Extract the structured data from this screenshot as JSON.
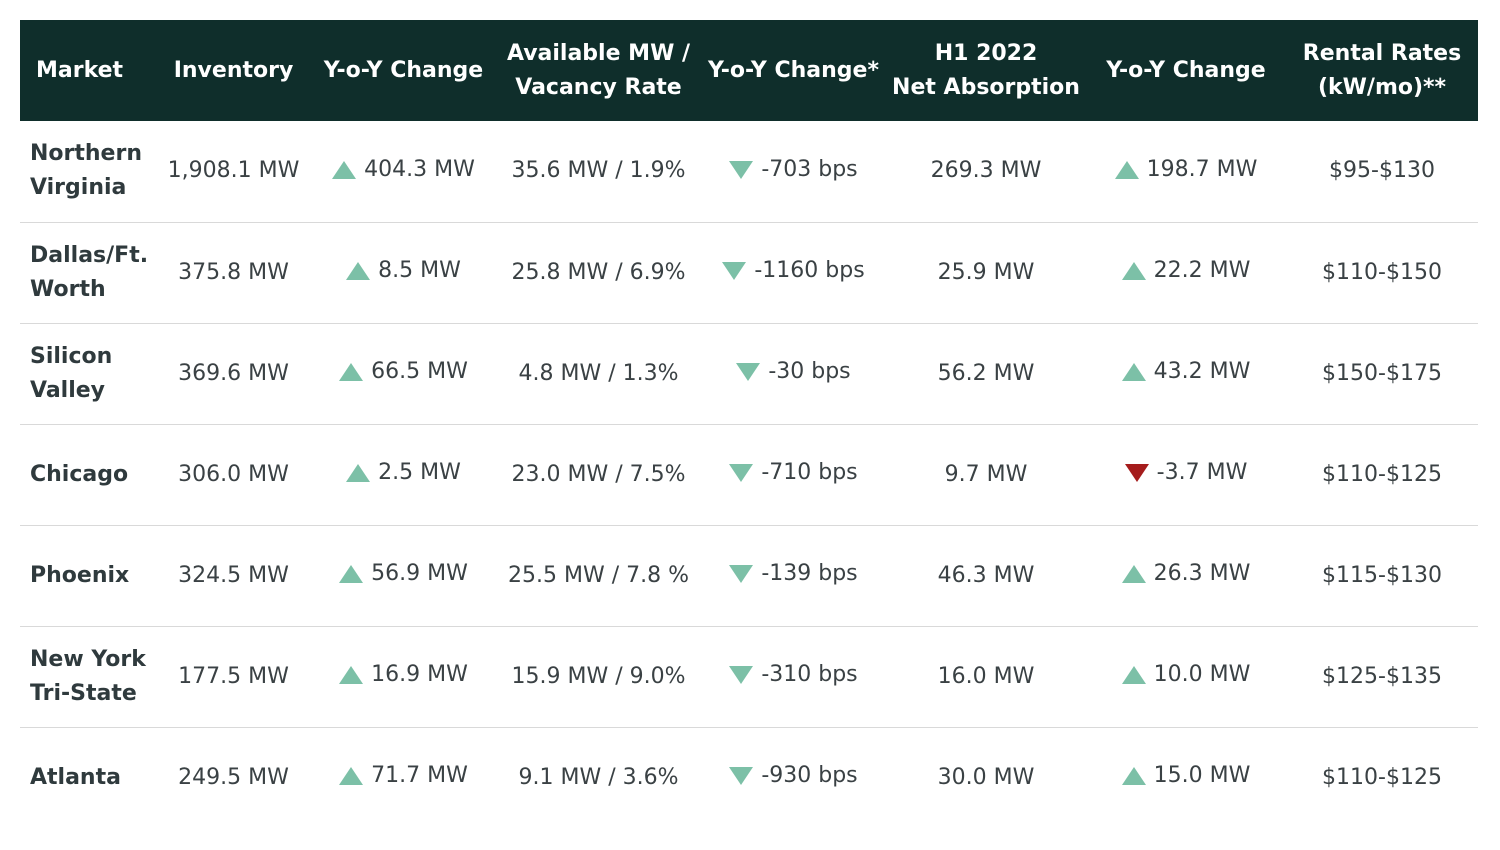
{
  "colors": {
    "header_bg": "#0f2e2b",
    "arrow_teal": "#7cc0a7",
    "arrow_red": "#a51c1c",
    "row_divider": "#d9d9d9"
  },
  "headers": [
    "Market",
    "Inventory",
    "Y-o-Y Change",
    "Available MW /\nVacancy Rate",
    "Y-o-Y Change*",
    "H1 2022\nNet Absorption",
    "Y-o-Y Change",
    "Rental Rates\n(kW/mo)**"
  ],
  "rows": [
    {
      "market": "Northern\nVirginia",
      "inventory": "1,908.1 MW",
      "inv_chg": "404.3 MW",
      "inv_dir": "up",
      "available": "35.6 MW / 1.9%",
      "vac_chg": "-703 bps",
      "vac_dir": "down",
      "absorption": "269.3 MW",
      "abs_chg": "198.7 MW",
      "abs_dir": "up",
      "rates": "$95-$130"
    },
    {
      "market": "Dallas/Ft.\nWorth",
      "inventory": "375.8 MW",
      "inv_chg": "8.5 MW",
      "inv_dir": "up",
      "available": "25.8 MW / 6.9%",
      "vac_chg": "-1160 bps",
      "vac_dir": "down",
      "absorption": "25.9 MW",
      "abs_chg": "22.2 MW",
      "abs_dir": "up",
      "rates": "$110-$150"
    },
    {
      "market": "Silicon\nValley",
      "inventory": "369.6 MW",
      "inv_chg": "66.5 MW",
      "inv_dir": "up",
      "available": "4.8 MW / 1.3%",
      "vac_chg": "-30 bps",
      "vac_dir": "down",
      "absorption": "56.2 MW",
      "abs_chg": "43.2 MW",
      "abs_dir": "up",
      "rates": "$150-$175"
    },
    {
      "market": "Chicago",
      "inventory": "306.0 MW",
      "inv_chg": "2.5 MW",
      "inv_dir": "up",
      "available": "23.0 MW / 7.5%",
      "vac_chg": "-710 bps",
      "vac_dir": "down",
      "absorption": "9.7 MW",
      "abs_chg": "-3.7 MW",
      "abs_dir": "down-neg",
      "rates": "$110-$125"
    },
    {
      "market": "Phoenix",
      "inventory": "324.5 MW",
      "inv_chg": "56.9 MW",
      "inv_dir": "up",
      "available": "25.5 MW / 7.8 %",
      "vac_chg": "-139 bps",
      "vac_dir": "down",
      "absorption": "46.3 MW",
      "abs_chg": "26.3 MW",
      "abs_dir": "up",
      "rates": "$115-$130"
    },
    {
      "market": "New York\nTri-State",
      "inventory": "177.5 MW",
      "inv_chg": "16.9 MW",
      "inv_dir": "up",
      "available": "15.9 MW / 9.0%",
      "vac_chg": "-310 bps",
      "vac_dir": "down",
      "absorption": "16.0 MW",
      "abs_chg": "10.0 MW",
      "abs_dir": "up",
      "rates": "$125-$135"
    },
    {
      "market": "Atlanta",
      "inventory": "249.5 MW",
      "inv_chg": "71.7 MW",
      "inv_dir": "up",
      "available": "9.1 MW / 3.6%",
      "vac_chg": "-930 bps",
      "vac_dir": "down",
      "absorption": "30.0 MW",
      "abs_chg": "15.0 MW",
      "abs_dir": "up",
      "rates": "$110-$125"
    }
  ]
}
